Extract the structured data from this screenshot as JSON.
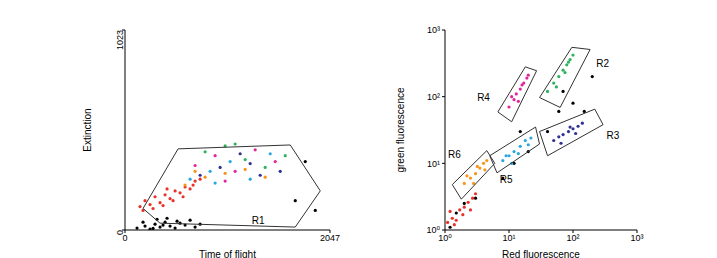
{
  "chart_data": [
    {
      "type": "scatter",
      "x_label": "Time of flight",
      "y_label": "Extinction",
      "xlim": [
        0,
        2047
      ],
      "ylim": [
        0,
        1023
      ],
      "xticks": [
        0,
        2047
      ],
      "yticks": [
        0,
        1023
      ],
      "series": [
        {
          "color": "#000000",
          "x": [
            120,
            200,
            250,
            300,
            350,
            400,
            450,
            500,
            550,
            600,
            650,
            700,
            180,
            320,
            420,
            520,
            750,
            280,
            380,
            1700,
            1900,
            1800
          ],
          "values": [
            10,
            20,
            5,
            30,
            15,
            40,
            20,
            10,
            35,
            25,
            50,
            15,
            40,
            55,
            60,
            45,
            30,
            8,
            25,
            150,
            100,
            350
          ]
        },
        {
          "color": "#e8322b",
          "x": [
            150,
            200,
            250,
            300,
            350,
            400,
            450,
            500,
            550,
            600,
            650,
            700,
            180,
            280,
            380,
            480,
            580,
            680,
            750,
            420
          ],
          "values": [
            120,
            150,
            130,
            170,
            140,
            180,
            160,
            200,
            190,
            220,
            210,
            250,
            100,
            110,
            125,
            150,
            170,
            230,
            260,
            210
          ]
        },
        {
          "color": "#e0289c",
          "x": [
            700,
            900,
            1100,
            1300,
            1500,
            1000
          ],
          "values": [
            330,
            380,
            300,
            410,
            350,
            250
          ]
        },
        {
          "color": "#2db35d",
          "x": [
            800,
            1000,
            1200,
            1400,
            1600,
            1100
          ],
          "values": [
            400,
            430,
            360,
            320,
            380,
            440
          ]
        },
        {
          "color": "#2e3192",
          "x": [
            750,
            950,
            1150,
            1350,
            1550,
            1250
          ],
          "values": [
            280,
            320,
            390,
            280,
            300,
            340
          ]
        },
        {
          "color": "#29a8e0",
          "x": [
            650,
            850,
            1050,
            1250,
            1450,
            900
          ],
          "values": [
            260,
            300,
            350,
            260,
            390,
            240
          ]
        },
        {
          "color": "#f7941d",
          "x": [
            600,
            800,
            1000,
            1200,
            1400,
            700
          ],
          "values": [
            230,
            270,
            290,
            310,
            270,
            300
          ]
        }
      ],
      "gates": [
        {
          "name": "R1",
          "x": [
            180,
            530,
            1650,
            1950,
            1700,
            350
          ],
          "values": [
            110,
            415,
            435,
            200,
            15,
            35
          ],
          "name_at": [
            1330,
            45
          ]
        }
      ]
    },
    {
      "type": "scatter",
      "log": true,
      "x_label": "Red fluorescence",
      "y_label": "green fluorescence",
      "xlim": [
        1,
        1000
      ],
      "ylim": [
        1,
        1000
      ],
      "xticks": [
        {
          "value": 1,
          "label": "10⁰"
        },
        {
          "value": 10,
          "label": "10¹"
        },
        {
          "value": 100,
          "label": "10²"
        },
        {
          "value": 1000,
          "label": "10³"
        }
      ],
      "yticks": [
        {
          "value": 1,
          "label": "10⁰"
        },
        {
          "value": 10,
          "label": "10¹"
        },
        {
          "value": 100,
          "label": "10²"
        },
        {
          "value": 1000,
          "label": "10³"
        }
      ],
      "series": [
        {
          "color": "#000000",
          "x": [
            1.2,
            1.5,
            2,
            3,
            8,
            12,
            20,
            40,
            60,
            100,
            150,
            200,
            15,
            70
          ],
          "values": [
            1.1,
            1.8,
            2.5,
            3,
            6,
            10,
            15,
            30,
            60,
            80,
            60,
            200,
            30,
            120
          ]
        },
        {
          "color": "#e8322b",
          "x": [
            1.1,
            1.3,
            1.5,
            1.7,
            2.0,
            2.3,
            2.7,
            3.0,
            1.2,
            1.9,
            2.5,
            1.4
          ],
          "values": [
            1.3,
            1.5,
            1.4,
            2.0,
            2.2,
            2.6,
            3.0,
            3.5,
            1.9,
            1.7,
            2.0,
            1.2
          ]
        },
        {
          "color": "#f7941d",
          "x": [
            2,
            2.5,
            3,
            3.5,
            4,
            4.5,
            2.8,
            3.2,
            2.2,
            4.2
          ],
          "values": [
            5,
            6,
            7,
            8.5,
            10,
            11,
            5,
            9,
            6.5,
            8
          ]
        },
        {
          "color": "#29a8e0",
          "x": [
            8,
            10,
            12,
            15,
            18,
            22,
            11,
            14,
            20,
            9
          ],
          "values": [
            11,
            13,
            15,
            18,
            22,
            24,
            10,
            14,
            19,
            13
          ]
        },
        {
          "color": "#e0289c",
          "x": [
            10,
            12,
            13,
            15,
            17,
            19,
            11,
            14,
            16,
            20
          ],
          "values": [
            70,
            90,
            110,
            130,
            160,
            190,
            100,
            85,
            150,
            210
          ]
        },
        {
          "color": "#2db35d",
          "x": [
            40,
            50,
            60,
            70,
            80,
            90,
            100,
            55,
            75,
            85
          ],
          "values": [
            120,
            160,
            200,
            250,
            300,
            360,
            420,
            140,
            230,
            330
          ]
        },
        {
          "color": "#2e3192",
          "x": [
            50,
            60,
            70,
            85,
            100,
            120,
            140,
            65,
            90,
            110
          ],
          "values": [
            22,
            25,
            27,
            30,
            33,
            36,
            40,
            20,
            35,
            28
          ]
        }
      ],
      "gates": [
        {
          "name": "R2",
          "x": [
            30,
            96,
            185,
            63
          ],
          "values": [
            97,
            550,
            510,
            69
          ],
          "name_at": [
            290,
            300
          ]
        },
        {
          "name": "R4",
          "x": [
            6.7,
            18,
            27,
            11
          ],
          "values": [
            59,
            280,
            245,
            42
          ],
          "name_at": [
            4,
            95
          ]
        },
        {
          "name": "R3",
          "x": [
            30,
            219,
            295,
            40
          ],
          "values": [
            30,
            65,
            38,
            13
          ],
          "name_at": [
            420,
            25
          ]
        },
        {
          "name": "R5",
          "x": [
            5,
            26,
            30,
            6.5
          ],
          "values": [
            13,
            35,
            19.5,
            7.2
          ],
          "name_at": [
            9,
            5.5
          ]
        },
        {
          "name": "R6",
          "x": [
            1.3,
            4.5,
            6,
            1.8
          ],
          "values": [
            4.8,
            15.5,
            10,
            2.9
          ],
          "name_at": [
            1.4,
            13
          ]
        }
      ]
    }
  ]
}
